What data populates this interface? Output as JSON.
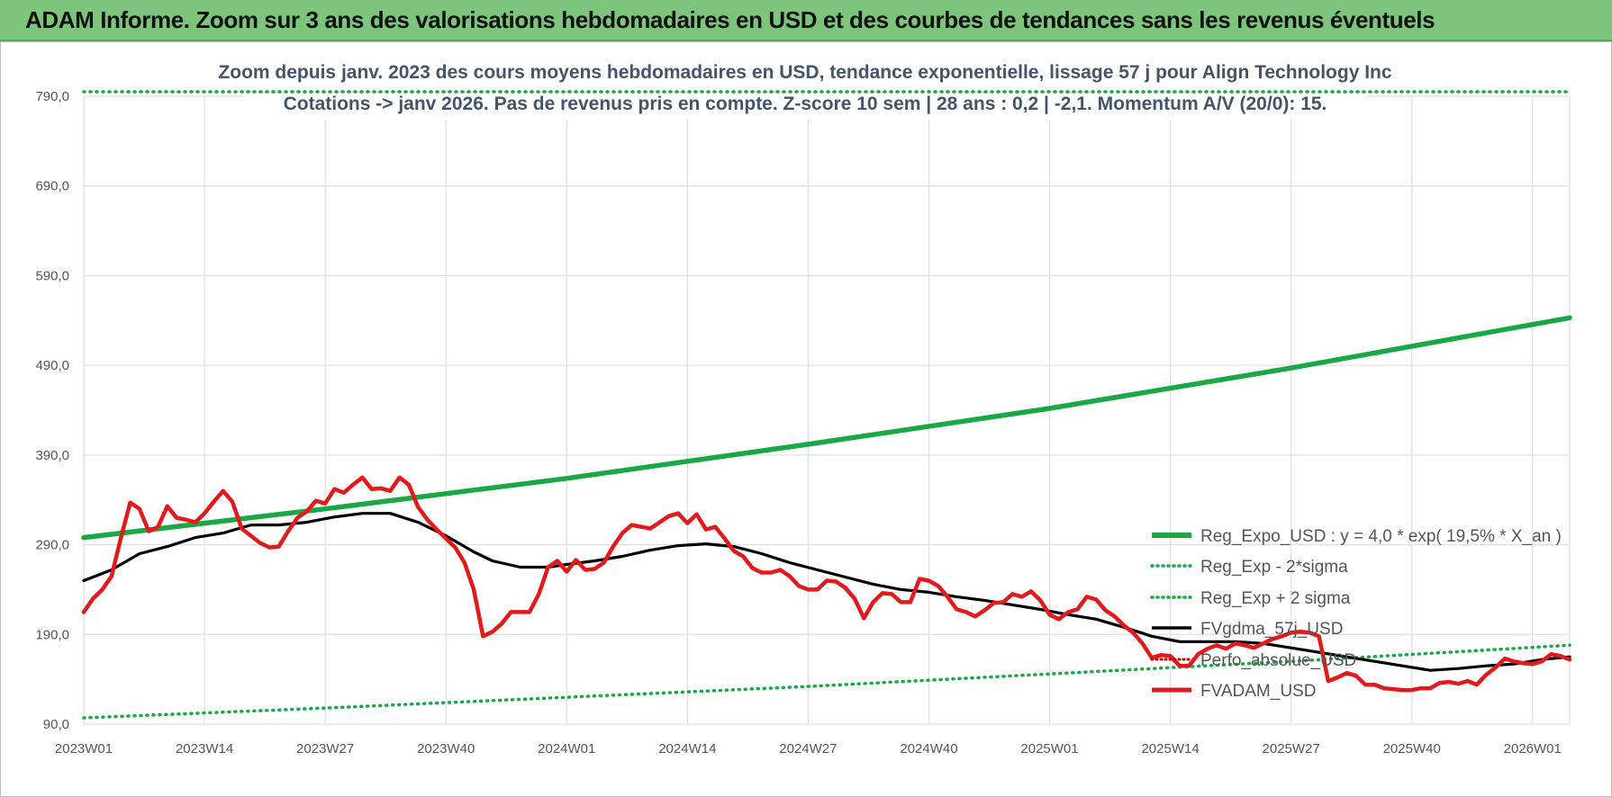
{
  "banner": {
    "title": "ADAM Informe. Zoom sur 3 ans des valorisations hebdomadaires en USD et des courbes de tendances sans les revenus éventuels"
  },
  "colors": {
    "banner_bg": "#7dc57d",
    "reg_expo": "#1aa845",
    "sigma_lines": "#1aa845",
    "fvgdma": "#000000",
    "perfo": "#c00000",
    "fvadam": "#e31a1c",
    "grid": "#e0e0e0"
  },
  "chart_data": {
    "type": "line",
    "title_lines": [
      "Zoom depuis janv. 2023 des cours moyens hebdomadaires en USD, tendance exponentielle, lissage 57 j pour Align Technology Inc",
      "Cotations -> janv 2026. Pas de revenus pris en compte. Z-score 10 sem | 28 ans : 0,2 | -2,1. Momentum A/V (20/0): 15."
    ],
    "x_tick_labels": [
      "2023W01",
      "2023W14",
      "2023W27",
      "2023W40",
      "2024W01",
      "2024W14",
      "2024W27",
      "2024W40",
      "2025W01",
      "2025W14",
      "2025W27",
      "2025W40",
      "2026W01"
    ],
    "x_tick_weeks": [
      0,
      13,
      26,
      39,
      52,
      65,
      78,
      91,
      104,
      117,
      130,
      143,
      156
    ],
    "x_range": [
      0,
      160
    ],
    "y_tick_labels": [
      "90,0",
      "190,0",
      "290,0",
      "390,0",
      "490,0",
      "590,0",
      "690,0",
      "790,0"
    ],
    "y_tick_values": [
      90,
      190,
      290,
      390,
      490,
      590,
      690,
      790
    ],
    "ylim": [
      90,
      790
    ],
    "grid": true,
    "legend_position": "bottom-right",
    "series": [
      {
        "name": "Reg_Expo_USD : y = 4,0 * exp( 19,5% *  X_an )",
        "style": "thick-solid",
        "color": "#1aa845",
        "points": [
          [
            0,
            298
          ],
          [
            26,
            330
          ],
          [
            52,
            364
          ],
          [
            78,
            402
          ],
          [
            104,
            442
          ],
          [
            130,
            487
          ],
          [
            160,
            543
          ]
        ]
      },
      {
        "name": "Reg_Exp - 2*sigma",
        "style": "dotted",
        "color": "#1aa845",
        "points": [
          [
            0,
            97
          ],
          [
            26,
            108
          ],
          [
            52,
            120
          ],
          [
            78,
            132
          ],
          [
            104,
            146
          ],
          [
            130,
            160
          ],
          [
            160,
            178
          ]
        ]
      },
      {
        "name": "Reg_Exp + 2 sigma",
        "style": "dotted",
        "color": "#1aa845",
        "points": [
          [
            0,
            795
          ],
          [
            160,
            795
          ]
        ]
      },
      {
        "name": "FVgdma_57j_USD",
        "style": "solid",
        "color": "#000000",
        "points": [
          [
            0,
            250
          ],
          [
            3,
            262
          ],
          [
            6,
            280
          ],
          [
            9,
            288
          ],
          [
            12,
            298
          ],
          [
            15,
            303
          ],
          [
            18,
            312
          ],
          [
            21,
            312
          ],
          [
            24,
            315
          ],
          [
            27,
            321
          ],
          [
            30,
            325
          ],
          [
            33,
            325
          ],
          [
            36,
            315
          ],
          [
            39,
            300
          ],
          [
            42,
            282
          ],
          [
            44,
            272
          ],
          [
            47,
            265
          ],
          [
            50,
            265
          ],
          [
            52,
            268
          ],
          [
            55,
            272
          ],
          [
            58,
            277
          ],
          [
            61,
            284
          ],
          [
            64,
            289
          ],
          [
            67,
            291
          ],
          [
            70,
            288
          ],
          [
            73,
            280
          ],
          [
            76,
            270
          ],
          [
            79,
            262
          ],
          [
            82,
            254
          ],
          [
            85,
            246
          ],
          [
            88,
            240
          ],
          [
            91,
            237
          ],
          [
            94,
            232
          ],
          [
            97,
            228
          ],
          [
            100,
            223
          ],
          [
            103,
            218
          ],
          [
            106,
            212
          ],
          [
            109,
            207
          ],
          [
            112,
            198
          ],
          [
            115,
            188
          ],
          [
            118,
            182
          ],
          [
            121,
            182
          ],
          [
            124,
            182
          ],
          [
            127,
            180
          ],
          [
            130,
            175
          ],
          [
            133,
            170
          ],
          [
            136,
            165
          ],
          [
            139,
            160
          ],
          [
            142,
            155
          ],
          [
            145,
            150
          ],
          [
            148,
            152
          ],
          [
            151,
            155
          ],
          [
            154,
            157
          ],
          [
            157,
            162
          ],
          [
            160,
            165
          ]
        ]
      },
      {
        "name": "Perfo_absolue_USD",
        "style": "dotted",
        "color": "#c00000",
        "points": []
      },
      {
        "name": "FVADAM_USD",
        "style": "thick-solid",
        "color": "#e31a1c",
        "points": [
          [
            0,
            215
          ],
          [
            1,
            230
          ],
          [
            2,
            240
          ],
          [
            3,
            255
          ],
          [
            4,
            298
          ],
          [
            5,
            337
          ],
          [
            6,
            330
          ],
          [
            7,
            305
          ],
          [
            8,
            310
          ],
          [
            9,
            333
          ],
          [
            10,
            320
          ],
          [
            11,
            318
          ],
          [
            12,
            315
          ],
          [
            13,
            325
          ],
          [
            14,
            338
          ],
          [
            15,
            350
          ],
          [
            16,
            338
          ],
          [
            17,
            308
          ],
          [
            18,
            300
          ],
          [
            19,
            292
          ],
          [
            20,
            287
          ],
          [
            21,
            288
          ],
          [
            22,
            305
          ],
          [
            23,
            320
          ],
          [
            24,
            327
          ],
          [
            25,
            339
          ],
          [
            26,
            336
          ],
          [
            27,
            352
          ],
          [
            28,
            348
          ],
          [
            29,
            357
          ],
          [
            30,
            365
          ],
          [
            31,
            352
          ],
          [
            32,
            353
          ],
          [
            33,
            350
          ],
          [
            34,
            365
          ],
          [
            35,
            357
          ],
          [
            36,
            332
          ],
          [
            37,
            318
          ],
          [
            38,
            307
          ],
          [
            39,
            297
          ],
          [
            40,
            287
          ],
          [
            41,
            270
          ],
          [
            42,
            240
          ],
          [
            43,
            188
          ],
          [
            44,
            193
          ],
          [
            45,
            202
          ],
          [
            46,
            215
          ],
          [
            47,
            215
          ],
          [
            48,
            215
          ],
          [
            49,
            235
          ],
          [
            50,
            265
          ],
          [
            51,
            272
          ],
          [
            52,
            260
          ],
          [
            53,
            273
          ],
          [
            54,
            262
          ],
          [
            55,
            263
          ],
          [
            56,
            270
          ],
          [
            57,
            288
          ],
          [
            58,
            303
          ],
          [
            59,
            312
          ],
          [
            60,
            310
          ],
          [
            61,
            308
          ],
          [
            62,
            315
          ],
          [
            63,
            322
          ],
          [
            64,
            325
          ],
          [
            65,
            314
          ],
          [
            66,
            324
          ],
          [
            67,
            307
          ],
          [
            68,
            310
          ],
          [
            69,
            297
          ],
          [
            70,
            283
          ],
          [
            71,
            277
          ],
          [
            72,
            264
          ],
          [
            73,
            259
          ],
          [
            74,
            259
          ],
          [
            75,
            262
          ],
          [
            76,
            255
          ],
          [
            77,
            244
          ],
          [
            78,
            240
          ],
          [
            79,
            240
          ],
          [
            80,
            250
          ],
          [
            81,
            249
          ],
          [
            82,
            242
          ],
          [
            83,
            230
          ],
          [
            84,
            208
          ],
          [
            85,
            226
          ],
          [
            86,
            236
          ],
          [
            87,
            235
          ],
          [
            88,
            226
          ],
          [
            89,
            226
          ],
          [
            90,
            252
          ],
          [
            91,
            250
          ],
          [
            92,
            244
          ],
          [
            93,
            232
          ],
          [
            94,
            218
          ],
          [
            95,
            215
          ],
          [
            96,
            210
          ],
          [
            97,
            217
          ],
          [
            98,
            225
          ],
          [
            99,
            226
          ],
          [
            100,
            235
          ],
          [
            101,
            232
          ],
          [
            102,
            238
          ],
          [
            103,
            228
          ],
          [
            104,
            212
          ],
          [
            105,
            207
          ],
          [
            106,
            215
          ],
          [
            107,
            218
          ],
          [
            108,
            232
          ],
          [
            109,
            229
          ],
          [
            110,
            217
          ],
          [
            111,
            210
          ],
          [
            112,
            200
          ],
          [
            113,
            192
          ],
          [
            114,
            180
          ],
          [
            115,
            164
          ],
          [
            116,
            167
          ],
          [
            117,
            166
          ],
          [
            118,
            155
          ],
          [
            119,
            155
          ],
          [
            120,
            168
          ],
          [
            121,
            174
          ],
          [
            122,
            178
          ],
          [
            123,
            174
          ],
          [
            124,
            180
          ],
          [
            125,
            178
          ],
          [
            126,
            175
          ],
          [
            127,
            180
          ],
          [
            128,
            185
          ],
          [
            129,
            188
          ],
          [
            130,
            192
          ],
          [
            131,
            193
          ],
          [
            132,
            192
          ],
          [
            133,
            188
          ],
          [
            134,
            138
          ],
          [
            135,
            142
          ],
          [
            136,
            147
          ],
          [
            137,
            144
          ],
          [
            138,
            134
          ],
          [
            139,
            134
          ],
          [
            140,
            130
          ],
          [
            141,
            129
          ],
          [
            142,
            128
          ],
          [
            143,
            128
          ],
          [
            144,
            130
          ],
          [
            145,
            130
          ],
          [
            146,
            136
          ],
          [
            147,
            137
          ],
          [
            148,
            135
          ],
          [
            149,
            138
          ],
          [
            150,
            134
          ],
          [
            151,
            145
          ],
          [
            152,
            153
          ],
          [
            153,
            163
          ],
          [
            154,
            160
          ],
          [
            155,
            158
          ],
          [
            156,
            157
          ],
          [
            157,
            160
          ],
          [
            158,
            168
          ],
          [
            159,
            166
          ],
          [
            160,
            162
          ]
        ]
      }
    ]
  }
}
